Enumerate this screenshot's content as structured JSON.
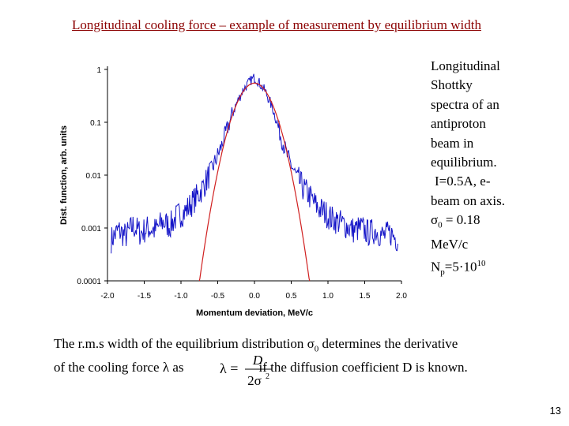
{
  "slide": {
    "title": "Longitudinal cooling force – example of measurement by equilibrium width",
    "page_number": "13"
  },
  "side_text": {
    "l1": "Longitudinal",
    "l2": "Shottky",
    "l3": "spectra of an",
    "l4": "antiproton",
    "l5": "beam in",
    "l6": "equilibrium.",
    "l7": "I=0.5A, e-",
    "l8": "beam on axis.",
    "sigma_symbol": "σ",
    "sigma_sub": "0",
    "sigma_value": " = 0.18",
    "sigma_unit": "MeV/c",
    "np_label": "N",
    "np_sub": "p",
    "np_value": "=5·10",
    "np_exp": "10"
  },
  "bottom_text": {
    "line1_start": "The r.m.s width of the equilibrium distribution ",
    "sigma_symbol": "σ",
    "sigma_sub": "0",
    "line1_end": " determines the derivative",
    "line2_start": "of the cooling force ",
    "lambda_symbol": "λ",
    "line2_mid": " as",
    "line2_end": "if the diffusion coefficient D is known."
  },
  "formula": {
    "lhs": "λ =",
    "numerator": "D",
    "denominator": "2σ",
    "exponent": "2"
  },
  "colors": {
    "title": "#8b0000",
    "measured": "#1515c8",
    "fit": "#d02020"
  },
  "chart_data": {
    "type": "line",
    "title": "",
    "xlabel": "Momentum deviation, MeV/c",
    "ylabel": "Dist. function, arb. units",
    "yscale": "log",
    "xlim": [
      -2.0,
      2.0
    ],
    "ylim": [
      0.0001,
      1
    ],
    "x_ticks": [
      "-2.0",
      "-1.5",
      "-1.0",
      "-0.5",
      "0.0",
      "0.5",
      "1.0",
      "1.5",
      "2.0"
    ],
    "y_ticks": [
      "1",
      "0.1",
      "0.01",
      "0.001",
      "0.0001"
    ],
    "series": [
      {
        "name": "Measured Schottky spectrum",
        "color": "#1515c8",
        "x": [
          -1.95,
          -1.85,
          -1.75,
          -1.65,
          -1.55,
          -1.45,
          -1.35,
          -1.25,
          -1.15,
          -1.05,
          -0.95,
          -0.85,
          -0.75,
          -0.65,
          -0.55,
          -0.45,
          -0.35,
          -0.25,
          -0.15,
          -0.05,
          0.0,
          0.05,
          0.15,
          0.25,
          0.35,
          0.45,
          0.55,
          0.65,
          0.75,
          0.85,
          0.95,
          1.05,
          1.15,
          1.25,
          1.35,
          1.45,
          1.55,
          1.65,
          1.75,
          1.85,
          1.95
        ],
        "y": [
          0.0006,
          0.0009,
          0.0007,
          0.0011,
          0.0008,
          0.001,
          0.0009,
          0.0013,
          0.0011,
          0.0017,
          0.002,
          0.003,
          0.0045,
          0.008,
          0.016,
          0.035,
          0.09,
          0.22,
          0.42,
          0.62,
          0.7,
          0.6,
          0.38,
          0.18,
          0.06,
          0.022,
          0.011,
          0.006,
          0.004,
          0.0025,
          0.002,
          0.0015,
          0.0013,
          0.0011,
          0.0009,
          0.001,
          0.0008,
          0.0009,
          0.0007,
          0.0008,
          0.0006
        ]
      },
      {
        "name": "Gaussian fit",
        "color": "#d02020",
        "sigma": 0.18,
        "amplitude": 0.55,
        "x_range": [
          -0.75,
          0.75
        ]
      }
    ]
  }
}
